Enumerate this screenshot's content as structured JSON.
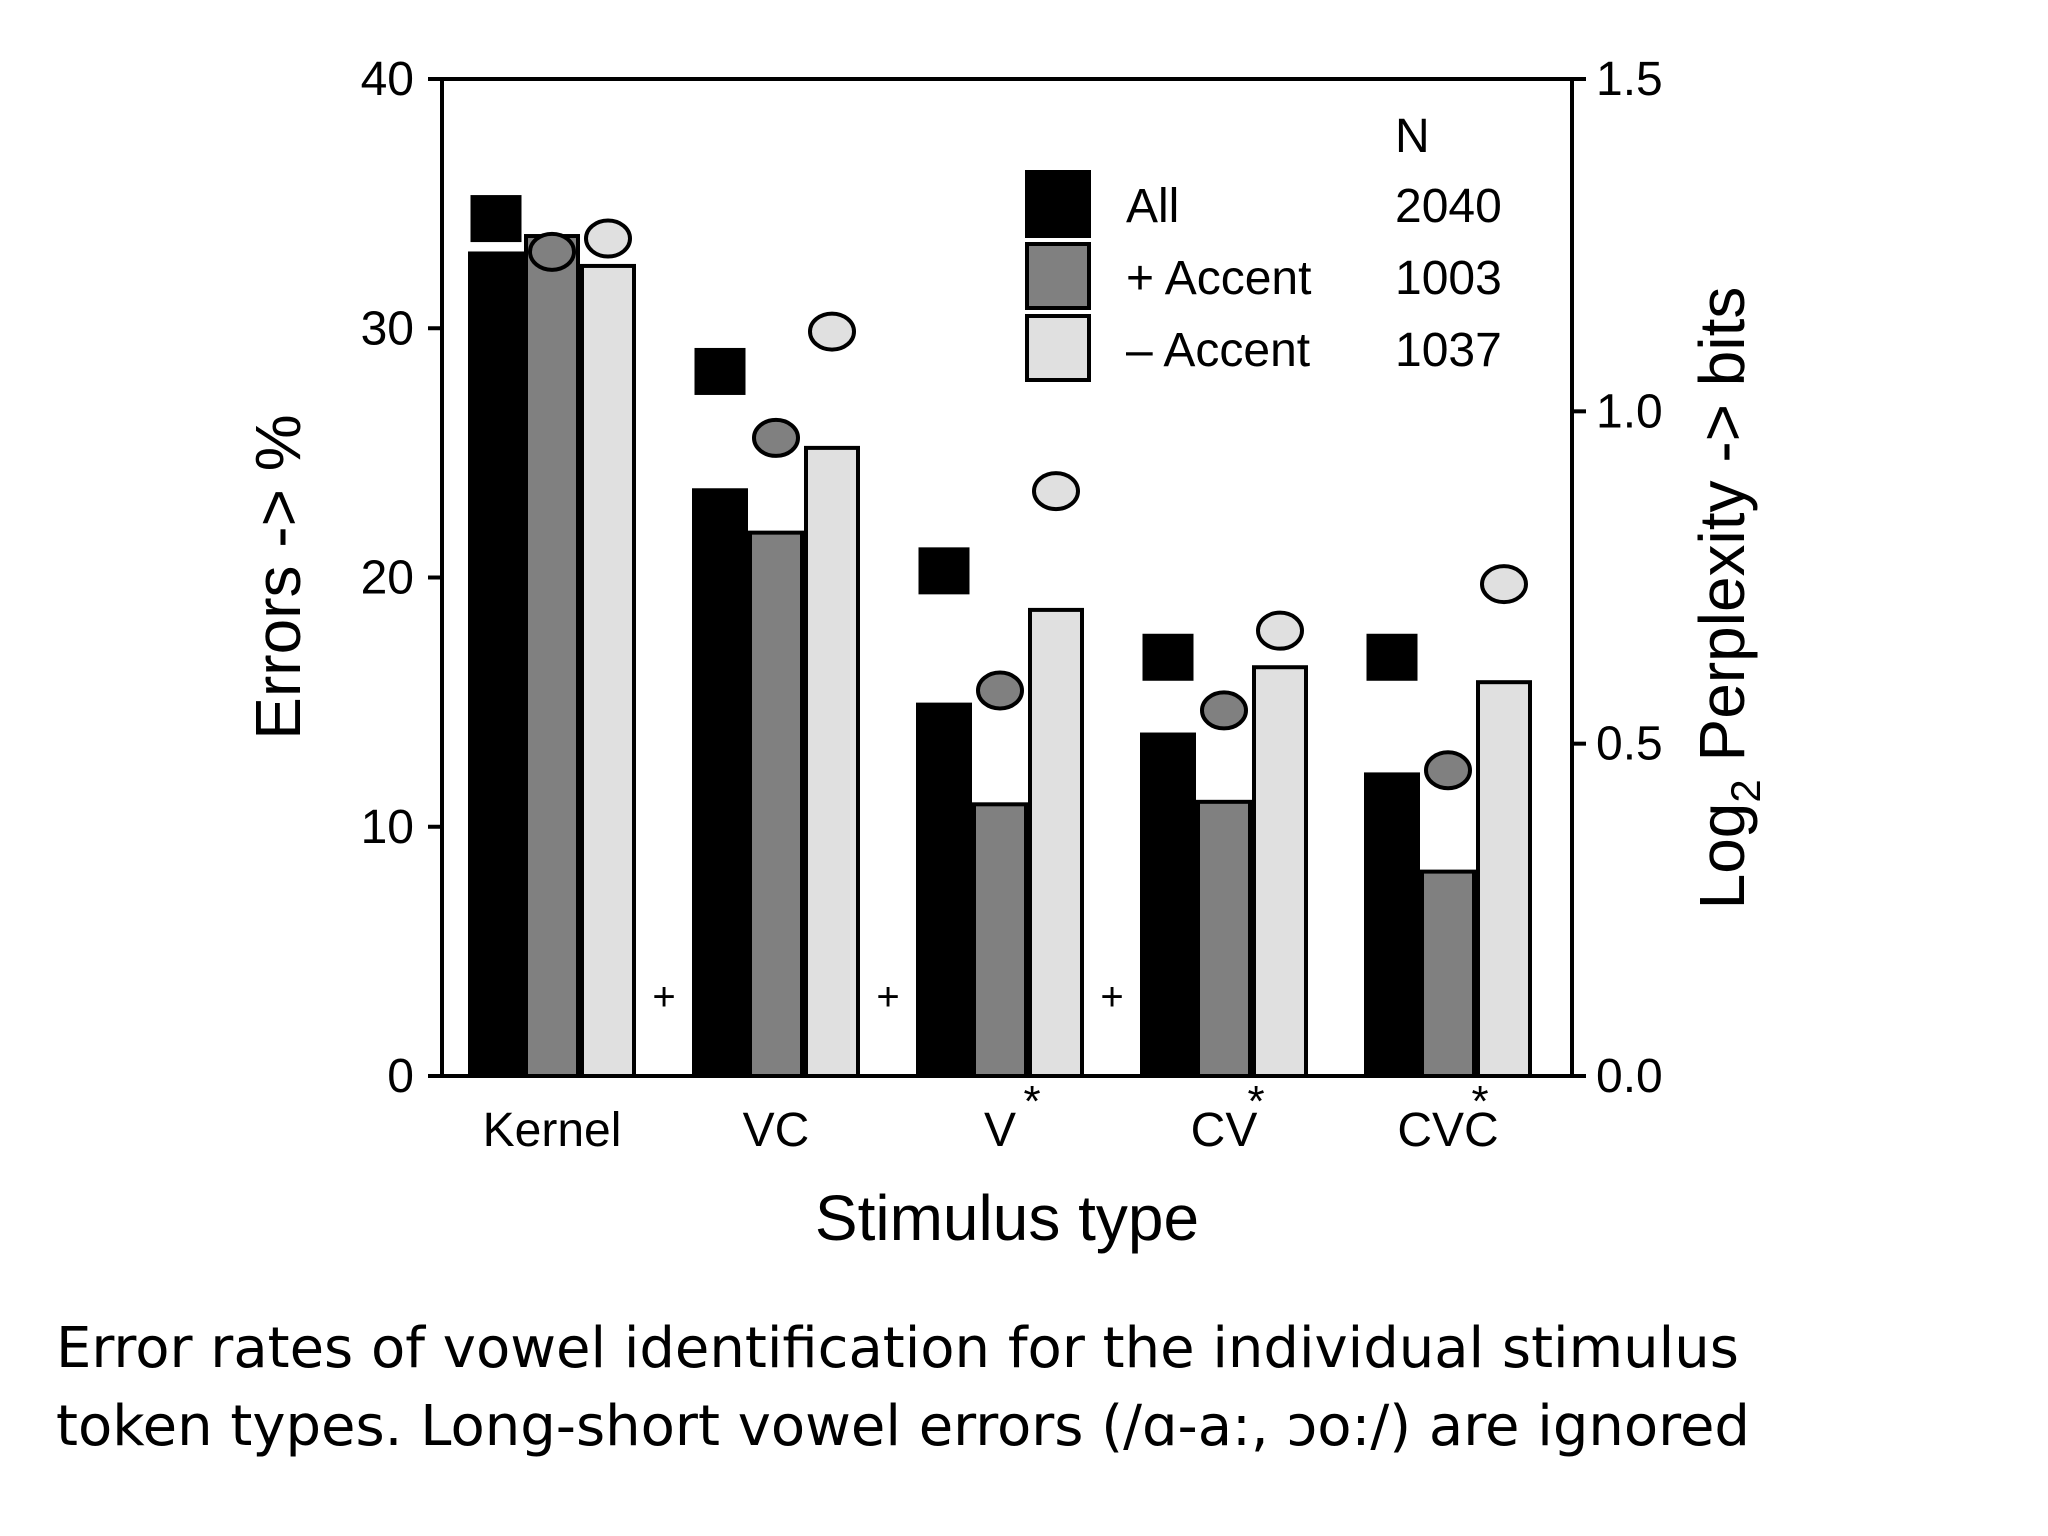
{
  "chart_data": {
    "type": "bar",
    "xlabel": "Stimulus type",
    "ylabel": "Errors -> %",
    "y2label": "Log2 Perplexity -> bits",
    "categories": [
      "Kernel",
      "VC",
      "V",
      "CV",
      "CVC"
    ],
    "category_marks": [
      "",
      "",
      "*",
      "*",
      "*"
    ],
    "separator_marks": [
      "+",
      "+",
      "+"
    ],
    "ylim": [
      0,
      40
    ],
    "yticks": [
      "0",
      "10",
      "20",
      "30",
      "40"
    ],
    "y2lim": [
      0,
      1.5
    ],
    "y2ticks": [
      "0.0",
      "0.5",
      "1.0",
      "1.5"
    ],
    "series": [
      {
        "name": "All",
        "n": "2040",
        "color": "#000000",
        "marker": "square",
        "values": [
          33.0,
          23.5,
          14.9,
          13.7,
          12.1
        ],
        "perplexity": [
          1.29,
          1.06,
          0.76,
          0.63,
          0.63
        ]
      },
      {
        "name": "+ Accent",
        "n": "1003",
        "color": "#808080",
        "marker": "circle",
        "values": [
          33.7,
          21.8,
          10.9,
          11.0,
          8.2
        ],
        "perplexity": [
          1.24,
          0.96,
          0.58,
          0.55,
          0.46
        ]
      },
      {
        "name": "– Accent",
        "n": "1037",
        "color": "#e0e0e0",
        "marker": "circle",
        "values": [
          32.5,
          25.2,
          18.7,
          16.4,
          15.8
        ],
        "perplexity": [
          1.26,
          1.12,
          0.88,
          0.67,
          0.74
        ]
      }
    ],
    "legend": {
      "header": "N",
      "placement": "top-right"
    }
  },
  "caption": {
    "line1": "Error rates of vowel identification for the individual stimulus",
    "line2": "token types. Long-short vowel errors (/ɑ-a:,  ɔo:/) are ignored"
  }
}
